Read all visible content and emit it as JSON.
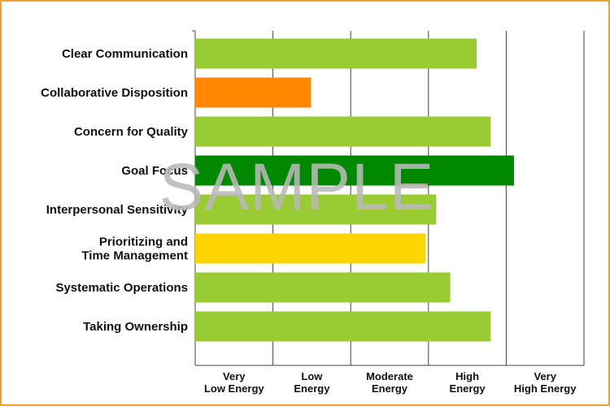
{
  "chart_data": {
    "type": "bar",
    "orientation": "horizontal",
    "categories": [
      [
        "Clear Communication"
      ],
      [
        "Collaborative Disposition"
      ],
      [
        "Concern for Quality"
      ],
      [
        "Goal Focus"
      ],
      [
        "Interpersonal Sensitivity"
      ],
      [
        "Prioritizing and",
        "Time Management"
      ],
      [
        "Systematic Operations"
      ],
      [
        "Taking Ownership"
      ]
    ],
    "values": [
      3.62,
      1.49,
      3.8,
      4.1,
      3.1,
      2.96,
      3.28,
      3.8
    ],
    "bar_colors": [
      "#99cc33",
      "#ff8800",
      "#99cc33",
      "#008800",
      "#99cc33",
      "#ffd500",
      "#99cc33",
      "#99cc33"
    ],
    "xlim": [
      0,
      5
    ],
    "x_ticks": [
      [
        "Very",
        "Low Energy"
      ],
      [
        "Low",
        "Energy"
      ],
      [
        "Moderate",
        "Energy"
      ],
      [
        "High",
        "Energy"
      ],
      [
        "Very",
        "High Energy"
      ]
    ],
    "grid": true,
    "title": "",
    "xlabel": "",
    "ylabel": ""
  },
  "watermark": "SAMPLE",
  "colors": {
    "border": "#f0a030",
    "gridline": "#444444",
    "watermark": "#b9b9b9"
  }
}
